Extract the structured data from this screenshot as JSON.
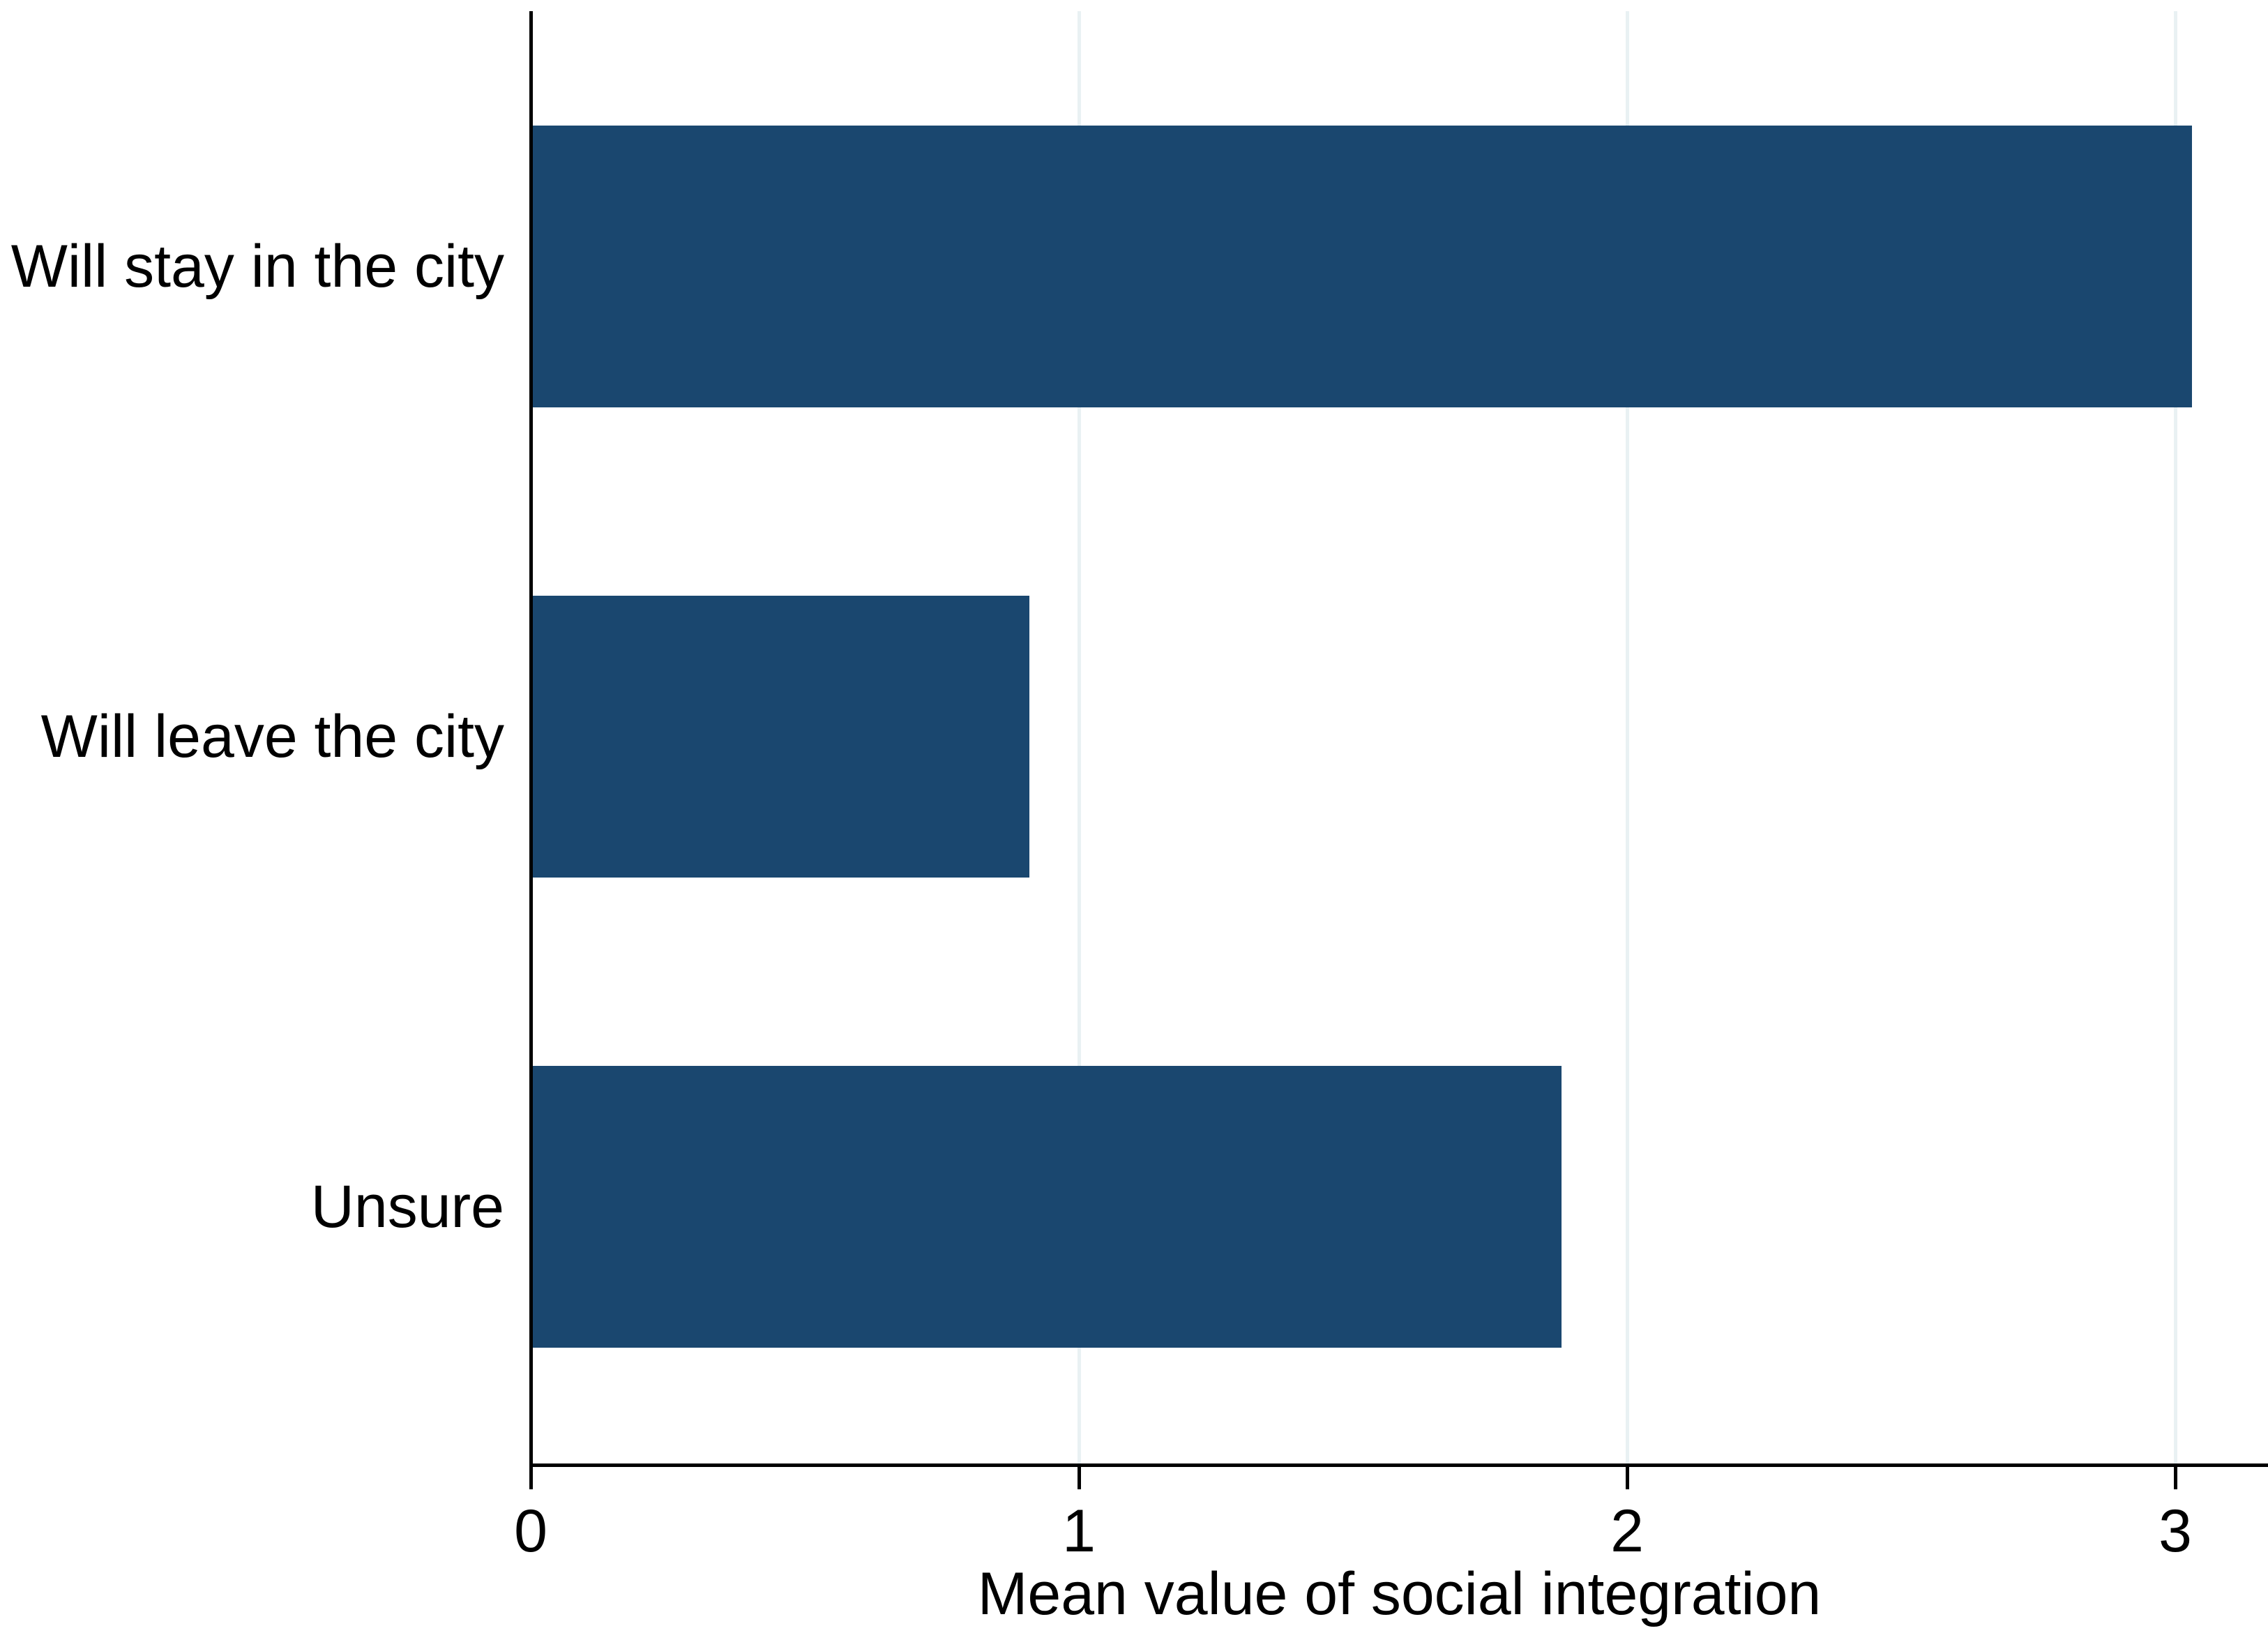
{
  "chart_data": {
    "type": "bar",
    "orientation": "horizontal",
    "title": "",
    "categories": [
      "Will stay in the city",
      "Will leave the city",
      "Unsure"
    ],
    "values": [
      3.03,
      0.91,
      1.88
    ],
    "xlabel": "Mean value of social integration",
    "ylabel": "",
    "x_ticks": [
      0,
      1,
      2,
      3
    ],
    "xlim": [
      0,
      3.17
    ],
    "grid": "vertical gridlines at x ticks",
    "legend_position": "none",
    "colors": {
      "bar_fill": "#1a476f",
      "gridline": "#e9f1f3",
      "axis": "#000000",
      "text": "#000000",
      "background": "#ffffff"
    }
  }
}
